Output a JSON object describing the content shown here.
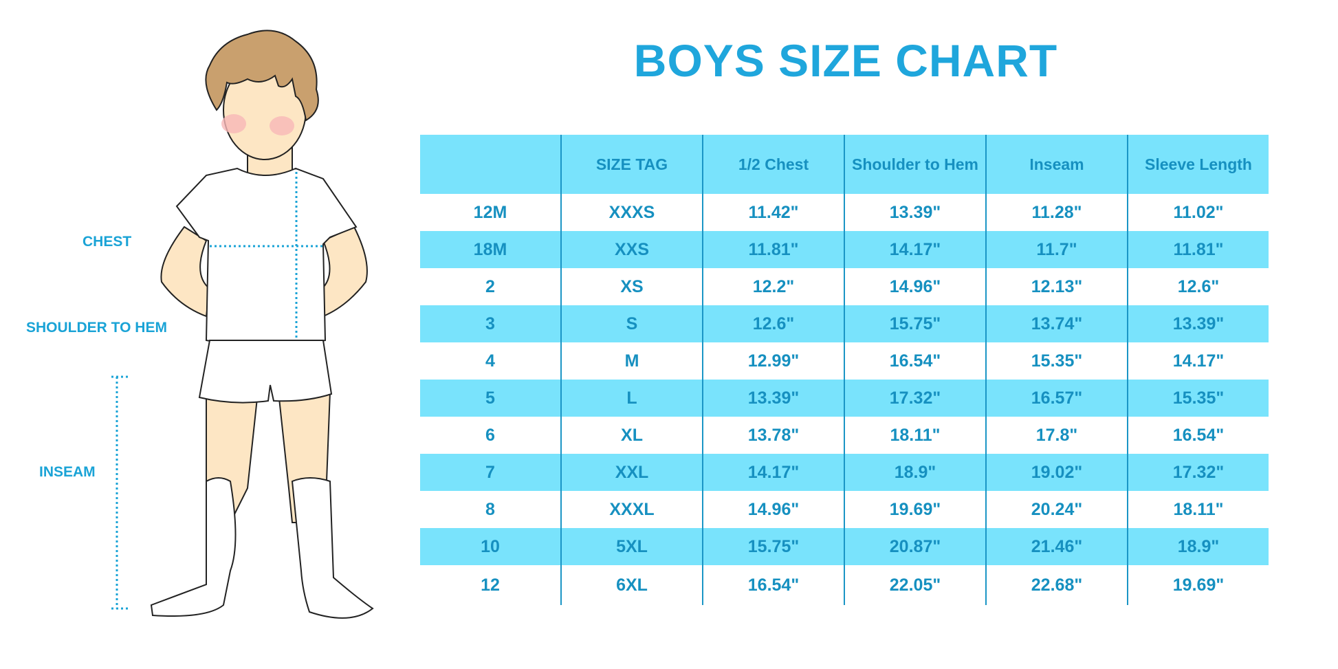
{
  "title": "BOYS SIZE CHART",
  "figure_labels": {
    "chest": "CHEST",
    "shoulder_to_hem": "SHOULDER TO HEM",
    "inseam": "INSEAM"
  },
  "colors": {
    "accent": "#1fa6dc",
    "row_highlight": "#79e3fc",
    "text": "#1690c0"
  },
  "table": {
    "headers": [
      "",
      "SIZE TAG",
      "1/2 Chest",
      "Shoulder to Hem",
      "Inseam",
      "Sleeve Length"
    ],
    "rows": [
      [
        "12M",
        "XXXS",
        "11.42\"",
        "13.39\"",
        "11.28\"",
        "11.02\""
      ],
      [
        "18M",
        "XXS",
        "11.81\"",
        "14.17\"",
        "11.7\"",
        "11.81\""
      ],
      [
        "2",
        "XS",
        "12.2\"",
        "14.96\"",
        "12.13\"",
        "12.6\""
      ],
      [
        "3",
        "S",
        "12.6\"",
        "15.75\"",
        "13.74\"",
        "13.39\""
      ],
      [
        "4",
        "M",
        "12.99\"",
        "16.54\"",
        "15.35\"",
        "14.17\""
      ],
      [
        "5",
        "L",
        "13.39\"",
        "17.32\"",
        "16.57\"",
        "15.35\""
      ],
      [
        "6",
        "XL",
        "13.78\"",
        "18.11\"",
        "17.8\"",
        "16.54\""
      ],
      [
        "7",
        "XXL",
        "14.17\"",
        "18.9\"",
        "19.02\"",
        "17.32\""
      ],
      [
        "8",
        "XXXL",
        "14.96\"",
        "19.69\"",
        "20.24\"",
        "18.11\""
      ],
      [
        "10",
        "5XL",
        "15.75\"",
        "20.87\"",
        "21.46\"",
        "18.9\""
      ],
      [
        "12",
        "6XL",
        "16.54\"",
        "22.05\"",
        "22.68\"",
        "19.69\""
      ]
    ]
  }
}
